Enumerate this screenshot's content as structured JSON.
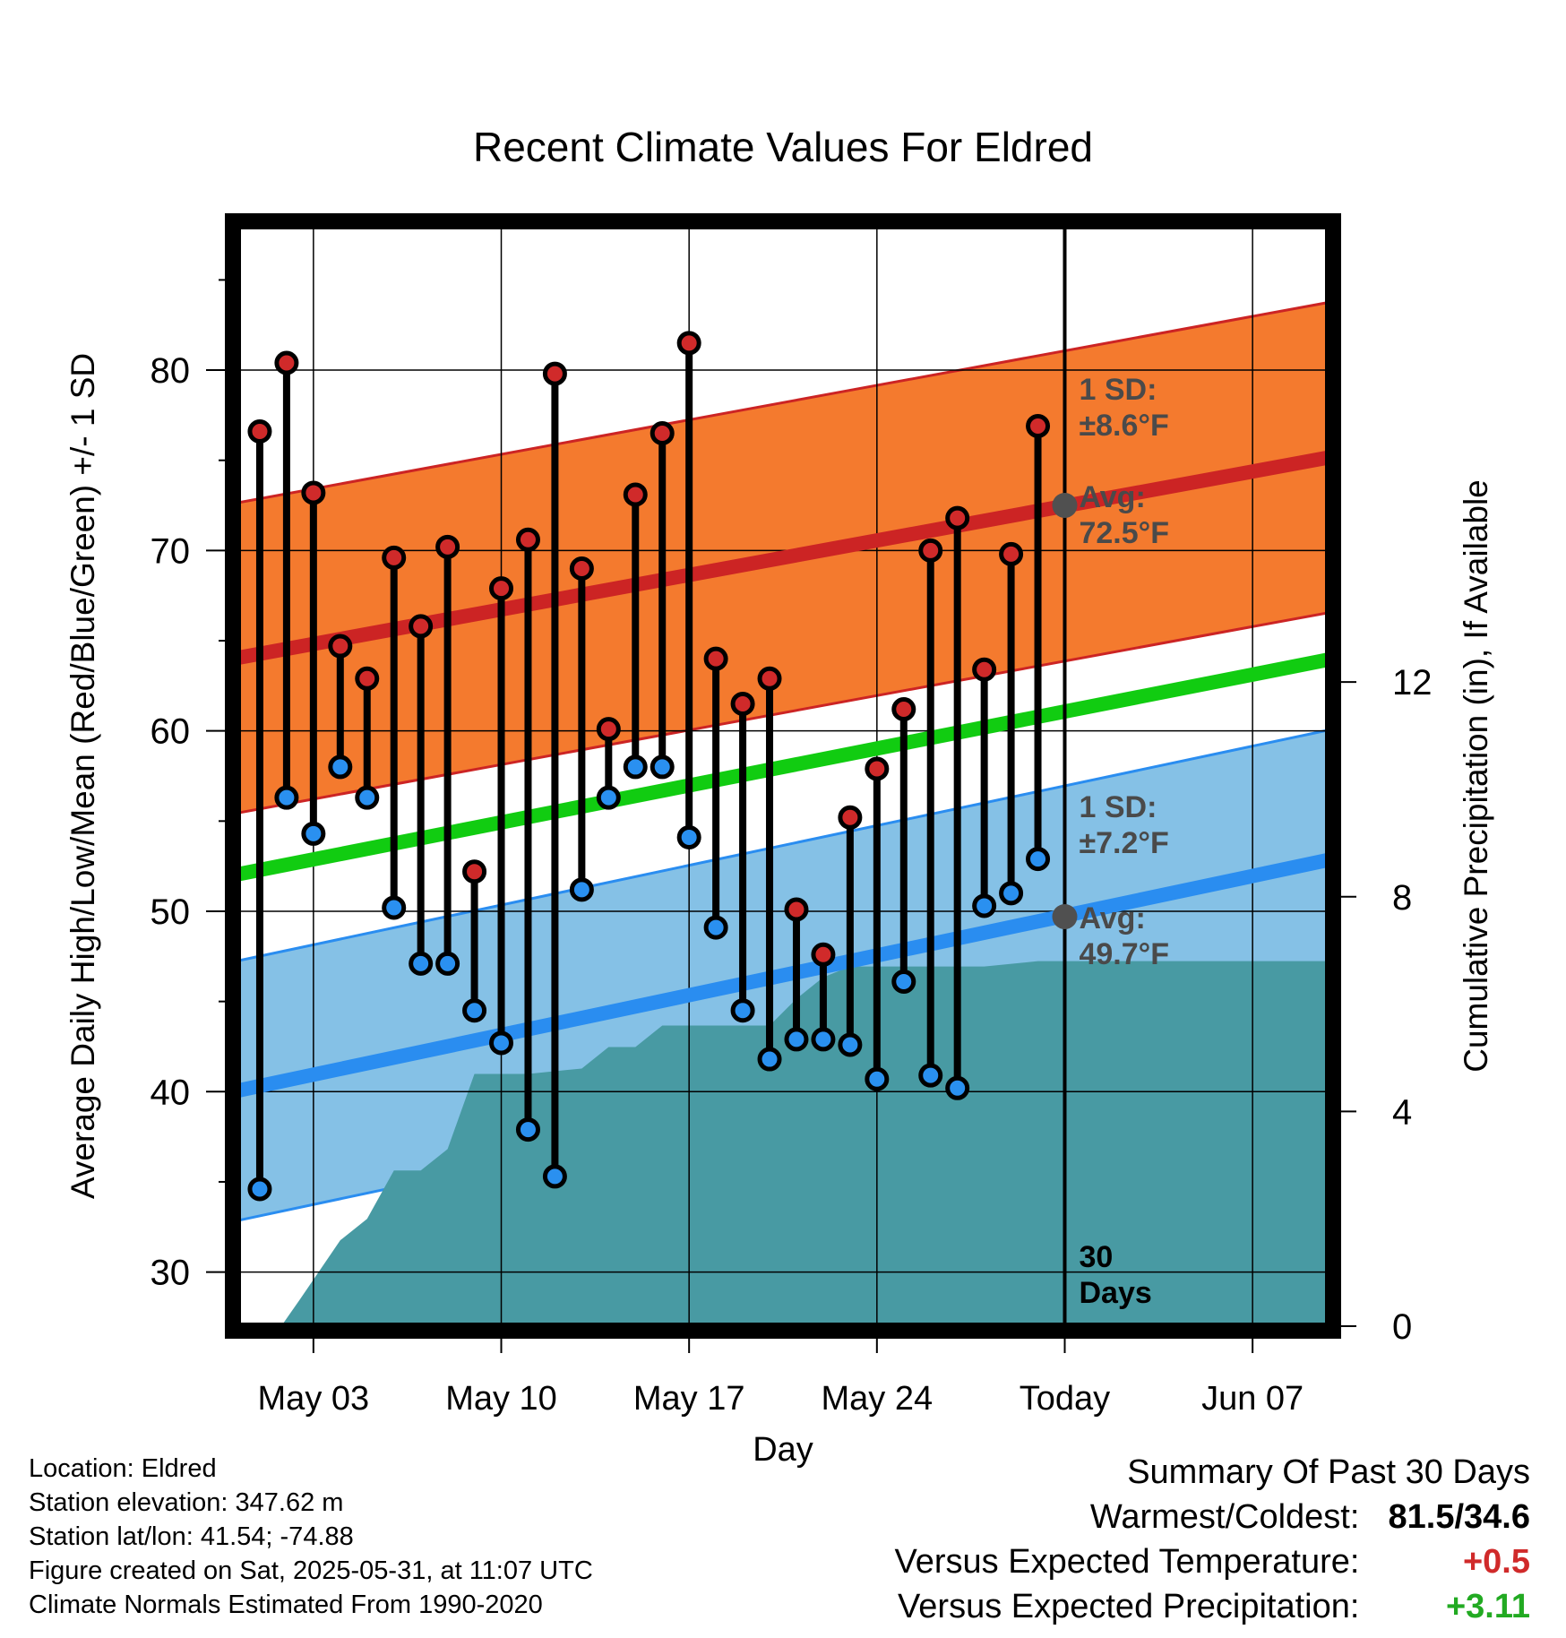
{
  "chart_data": {
    "type": "line",
    "title": "Recent Climate Values For Eldred",
    "xlabel": "Day",
    "ylabel_left": "Average Daily High/Low/Mean (Red/Blue/Green) +/- 1 SD",
    "ylabel_right": "Cumulative Precipitation (in), If Available",
    "x_range_days": [
      -31,
      10
    ],
    "x_ticks": [
      {
        "day": -28,
        "label": "May 03"
      },
      {
        "day": -21,
        "label": "May 10"
      },
      {
        "day": -14,
        "label": "May 17"
      },
      {
        "day": -7,
        "label": "May 24"
      },
      {
        "day": 0,
        "label": "Today"
      },
      {
        "day": 7,
        "label": "Jun 07"
      }
    ],
    "y_left_range": [
      27,
      88
    ],
    "y_left_ticks": [
      30,
      40,
      50,
      60,
      70,
      80
    ],
    "y_right_range": [
      0,
      20.5
    ],
    "y_right_ticks": [
      0,
      4,
      8,
      12
    ],
    "grid": true,
    "normals": {
      "high_avg": [
        {
          "day": -31,
          "value": 64.0
        },
        {
          "day": 10,
          "value": 75.2
        }
      ],
      "high_sd": 8.6,
      "low_avg": [
        {
          "day": -31,
          "value": 40.0
        },
        {
          "day": 10,
          "value": 52.9
        }
      ],
      "low_sd": 7.2,
      "mean_avg": [
        {
          "day": -31,
          "value": 52.0
        },
        {
          "day": 10,
          "value": 64.0
        }
      ]
    },
    "daily": {
      "days": [
        -30,
        -29,
        -28,
        -27,
        -26,
        -25,
        -24,
        -23,
        -22,
        -21,
        -20,
        -19,
        -18,
        -17,
        -16,
        -15,
        -14,
        -13,
        -12,
        -11,
        -10,
        -9,
        -8,
        -7,
        -6,
        -5,
        -4,
        -3,
        -2,
        -1
      ],
      "highs": [
        76.6,
        80.4,
        73.2,
        64.7,
        62.9,
        69.6,
        65.8,
        70.2,
        52.2,
        67.9,
        70.6,
        79.8,
        69.0,
        60.1,
        73.1,
        76.5,
        81.5,
        64.0,
        61.5,
        62.9,
        50.1,
        47.6,
        55.2,
        57.9,
        61.2,
        70.0,
        71.8,
        63.4,
        69.8,
        76.9
      ],
      "lows": [
        34.6,
        56.3,
        54.3,
        58.0,
        56.3,
        50.2,
        47.1,
        47.1,
        44.5,
        42.7,
        37.9,
        35.3,
        51.2,
        56.3,
        58.0,
        58.0,
        54.1,
        49.1,
        44.5,
        41.8,
        42.9,
        42.9,
        42.6,
        40.7,
        46.1,
        40.9,
        40.2,
        50.3,
        51.0,
        52.9
      ]
    },
    "precipitation": {
      "points": [
        {
          "day": -29.2,
          "value": 0.0
        },
        {
          "day": -28.5,
          "value": 0.5
        },
        {
          "day": -27.0,
          "value": 1.6
        },
        {
          "day": -26.0,
          "value": 2.0
        },
        {
          "day": -25.0,
          "value": 2.9
        },
        {
          "day": -24.0,
          "value": 2.9
        },
        {
          "day": -23.0,
          "value": 3.3
        },
        {
          "day": -22.0,
          "value": 4.7
        },
        {
          "day": -20.0,
          "value": 4.7
        },
        {
          "day": -18.0,
          "value": 4.8
        },
        {
          "day": -17.0,
          "value": 5.2
        },
        {
          "day": -16.0,
          "value": 5.2
        },
        {
          "day": -15.0,
          "value": 5.6
        },
        {
          "day": -11.0,
          "value": 5.6
        },
        {
          "day": -10.0,
          "value": 6.1
        },
        {
          "day": -9.0,
          "value": 6.5
        },
        {
          "day": -8.0,
          "value": 6.7
        },
        {
          "day": -3.0,
          "value": 6.7
        },
        {
          "day": -1.0,
          "value": 6.8
        },
        {
          "day": 10.0,
          "value": 6.8
        }
      ]
    },
    "annotations": {
      "high_sd_label": [
        "1 SD:",
        "±8.6°F"
      ],
      "high_avg_label": [
        "Avg:",
        "72.5°F"
      ],
      "low_sd_label": [
        "1 SD:",
        "±7.2°F"
      ],
      "low_avg_label": [
        "Avg:",
        "49.7°F"
      ],
      "window_label": [
        "30",
        "Days"
      ],
      "today_high_avg": 72.5,
      "today_low_avg": 49.7
    },
    "colors": {
      "high_band": "#f47a2e",
      "high_line": "#cc2424",
      "low_band": "#85c1e6",
      "low_line": "#2a8df0",
      "mean_line": "#11cc11",
      "precip": "#489aa3",
      "high_marker": "#d02a2a",
      "low_marker": "#2a90f0",
      "annotation_text": "#4a4a4a"
    }
  },
  "info": {
    "location": "Location: Eldred",
    "elevation": "Station elevation: 347.62 m",
    "latlon": "Station lat/lon: 41.54; -74.88",
    "created": "Figure created on Sat, 2025-05-31, at 11:07 UTC",
    "normals": "Climate Normals Estimated From 1990-2020"
  },
  "summary": {
    "title": "Summary Of Past 30 Days",
    "warm_cold_label": "Warmest/Coldest:",
    "warm_cold_value": "81.5/34.6",
    "temp_label": "Versus Expected Temperature:",
    "temp_value": "+0.5",
    "temp_color": "#d02a2a",
    "precip_label": "Versus Expected Precipitation:",
    "precip_value": "+3.11",
    "precip_color": "#22aa22"
  }
}
